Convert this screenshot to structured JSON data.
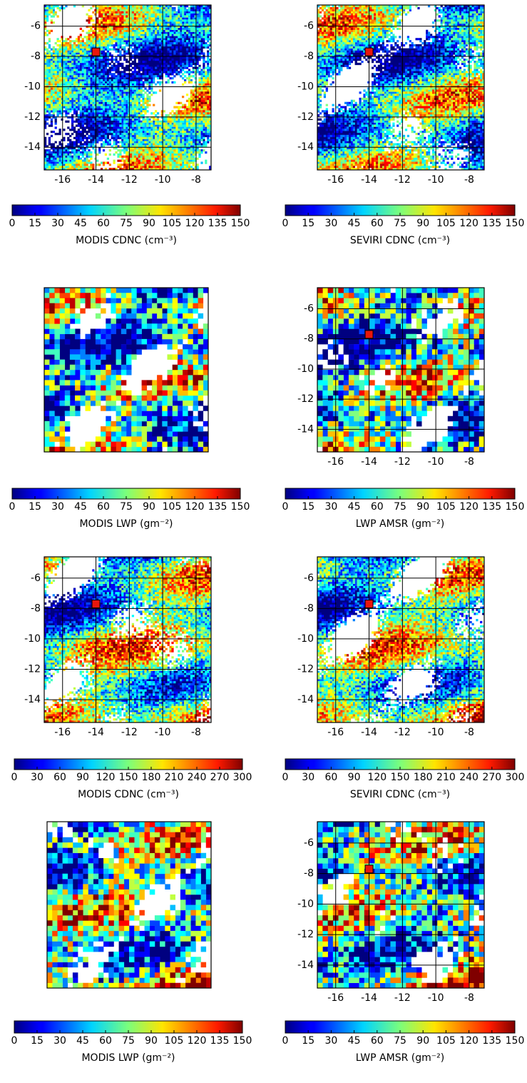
{
  "chart_data": [
    {
      "type": "heatmap",
      "xlim": [
        -17.1,
        -7.1
      ],
      "ylim": [
        -15.5,
        -4.6
      ],
      "xticks": [
        -16,
        -14,
        -12,
        -10,
        -8
      ],
      "yticks": [
        -14,
        -12,
        -10,
        -8,
        -6
      ],
      "grid": true,
      "points": {
        "x": [
          -14
        ],
        "y": [
          -7.7
        ],
        "color": "#e8160c"
      },
      "colorbar": {
        "label": "MODIS CDNC (cm⁻³)",
        "lim": [
          0,
          150
        ],
        "ticks": [
          0,
          15,
          30,
          45,
          60,
          75,
          90,
          105,
          120,
          135,
          150
        ]
      }
    },
    {
      "type": "heatmap",
      "xlim": [
        -17.1,
        -7.1
      ],
      "ylim": [
        -15.5,
        -4.6
      ],
      "xticks": [
        -16,
        -14,
        -12,
        -10,
        -8
      ],
      "yticks": [
        -14,
        -12,
        -10,
        -8,
        -6
      ],
      "grid": true,
      "points": {
        "x": [
          -14
        ],
        "y": [
          -7.7
        ],
        "color": "#e8160c"
      },
      "colorbar": {
        "label": "SEVIRI CDNC (cm⁻³)",
        "lim": [
          0,
          150
        ],
        "ticks": [
          0,
          15,
          30,
          45,
          60,
          75,
          90,
          105,
          120,
          135,
          150
        ]
      }
    },
    {
      "type": "heatmap",
      "xlim": [
        -17.1,
        -7.1
      ],
      "ylim": [
        -15.5,
        -4.6
      ],
      "grid": false,
      "colorbar": {
        "label": "MODIS LWP (gm⁻²)",
        "lim": [
          0,
          150
        ],
        "ticks": [
          0,
          15,
          30,
          45,
          60,
          75,
          90,
          105,
          120,
          135,
          150
        ]
      }
    },
    {
      "type": "heatmap",
      "xlim": [
        -17.1,
        -7.1
      ],
      "ylim": [
        -15.5,
        -4.6
      ],
      "xticks": [
        -16,
        -14,
        -12,
        -10,
        -8
      ],
      "yticks": [
        -14,
        -12,
        -10,
        -8,
        -6
      ],
      "grid": true,
      "points": {
        "x": [
          -14
        ],
        "y": [
          -7.7
        ],
        "color": "#e8160c"
      },
      "colorbar": {
        "label": "LWP AMSR (gm⁻²)",
        "lim": [
          0,
          150
        ],
        "ticks": [
          0,
          15,
          30,
          45,
          60,
          75,
          90,
          105,
          120,
          135,
          150
        ]
      }
    },
    {
      "type": "heatmap",
      "xlim": [
        -17.1,
        -7.1
      ],
      "ylim": [
        -15.5,
        -4.6
      ],
      "xticks": [
        -16,
        -14,
        -12,
        -10,
        -8
      ],
      "yticks": [
        -14,
        -12,
        -10,
        -8,
        -6
      ],
      "grid": true,
      "points": {
        "x": [
          -14
        ],
        "y": [
          -7.7
        ],
        "color": "#e8160c"
      },
      "colorbar": {
        "label": "MODIS CDNC (cm⁻³)",
        "lim": [
          0,
          300
        ],
        "ticks": [
          0,
          30,
          60,
          90,
          120,
          150,
          180,
          210,
          240,
          270,
          300
        ]
      }
    },
    {
      "type": "heatmap",
      "xlim": [
        -17.1,
        -7.1
      ],
      "ylim": [
        -15.5,
        -4.6
      ],
      "xticks": [
        -16,
        -14,
        -12,
        -10,
        -8
      ],
      "yticks": [
        -14,
        -12,
        -10,
        -8,
        -6
      ],
      "grid": true,
      "points": {
        "x": [
          -14
        ],
        "y": [
          -7.7
        ],
        "color": "#e8160c"
      },
      "colorbar": {
        "label": "SEVIRI CDNC (cm⁻³)",
        "lim": [
          0,
          300
        ],
        "ticks": [
          0,
          30,
          60,
          90,
          120,
          150,
          180,
          210,
          240,
          270,
          300
        ]
      }
    },
    {
      "type": "heatmap",
      "xlim": [
        -17.1,
        -7.1
      ],
      "ylim": [
        -15.5,
        -4.6
      ],
      "grid": false,
      "colorbar": {
        "label": "MODIS LWP (gm⁻²)",
        "lim": [
          0,
          150
        ],
        "ticks": [
          0,
          15,
          30,
          45,
          60,
          75,
          90,
          105,
          120,
          135,
          150
        ]
      }
    },
    {
      "type": "heatmap",
      "xlim": [
        -17.1,
        -7.1
      ],
      "ylim": [
        -15.5,
        -4.6
      ],
      "xticks": [
        -16,
        -14,
        -12,
        -10,
        -8
      ],
      "yticks": [
        -14,
        -12,
        -10,
        -8,
        -6
      ],
      "grid": true,
      "points": {
        "x": [
          -14
        ],
        "y": [
          -7.7
        ],
        "color": "#e8160c"
      },
      "colorbar": {
        "label": "LWP AMSR (gm⁻²)",
        "lim": [
          0,
          150
        ],
        "ticks": [
          0,
          15,
          30,
          45,
          60,
          75,
          90,
          105,
          120,
          135,
          150
        ]
      }
    }
  ]
}
